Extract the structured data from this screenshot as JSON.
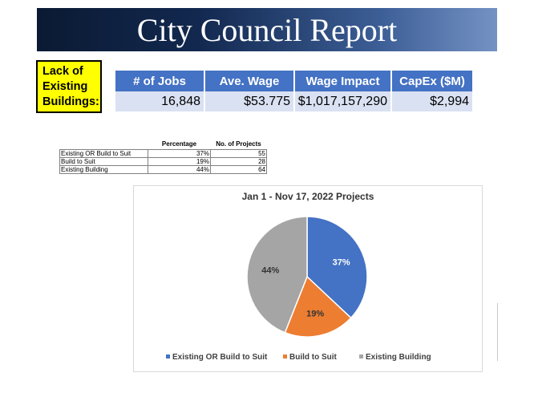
{
  "header": {
    "title": "City Council Report"
  },
  "callout": {
    "lines": [
      "Lack of",
      "Existing",
      "Buildings:"
    ]
  },
  "kpi_table": {
    "headers": [
      "# of Jobs",
      "Ave. Wage",
      "Wage Impact",
      "CapEx ($M)"
    ],
    "values": [
      "16,848",
      "$53.775",
      "$1,017,157,290",
      "$2,994"
    ]
  },
  "summary_table": {
    "headers": [
      "",
      "Percentage",
      "No. of Projects"
    ],
    "rows": [
      [
        "Existing OR Build to Suit",
        "37%",
        "55"
      ],
      [
        "Build to Suit",
        "19%",
        "28"
      ],
      [
        "Existing Building",
        "44%",
        "64"
      ]
    ]
  },
  "chart_data": {
    "type": "pie",
    "title": "Jan 1 - Nov 17, 2022 Projects",
    "categories": [
      "Existing OR Build to Suit",
      "Build to Suit",
      "Existing Building"
    ],
    "values": [
      37,
      19,
      44
    ],
    "labels": [
      "37%",
      "19%",
      "44%"
    ],
    "colors": [
      "#4472c4",
      "#ed7d31",
      "#a5a5a5"
    ],
    "legend": "bottom"
  }
}
